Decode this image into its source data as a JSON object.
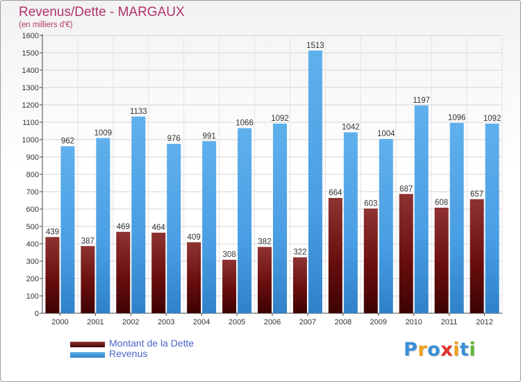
{
  "title": "Revenus/Dette - MARGAUX",
  "subtitle": "(en milliers d'€)",
  "legend": [
    {
      "label": "Montant de la Dette",
      "color": "#6e0b0b"
    },
    {
      "label": "Revenus",
      "color": "#4a9ee3"
    }
  ],
  "logo": {
    "text": "Proxiti",
    "letters": [
      {
        "ch": "P",
        "color": "#3a8fd8"
      },
      {
        "ch": "r",
        "color": "#f0a01c"
      },
      {
        "ch": "o",
        "color": "#3a8fd8"
      },
      {
        "ch": "x",
        "color": "#e0312b"
      },
      {
        "ch": "i",
        "color": "#f0a01c"
      },
      {
        "ch": "t",
        "color": "#3a8fd8"
      },
      {
        "ch": "i",
        "color": "#5fb636"
      }
    ]
  },
  "chart_data": {
    "type": "bar",
    "title": "Revenus/Dette - MARGAUX",
    "subtitle": "(en milliers d'€)",
    "categories": [
      "2000",
      "2001",
      "2002",
      "2003",
      "2004",
      "2005",
      "2006",
      "2007",
      "2008",
      "2009",
      "2010",
      "2011",
      "2012"
    ],
    "series": [
      {
        "name": "Montant de la Dette",
        "color": "#6e0b0b",
        "values": [
          439,
          387,
          469,
          464,
          409,
          308,
          382,
          322,
          664,
          603,
          687,
          608,
          657
        ]
      },
      {
        "name": "Revenus",
        "color": "#4a9ee3",
        "values": [
          962,
          1009,
          1133,
          976,
          991,
          1066,
          1092,
          1513,
          1042,
          1004,
          1197,
          1096,
          1092
        ]
      }
    ],
    "ylim": [
      0,
      1600
    ],
    "yticks": [
      0,
      100,
      200,
      300,
      400,
      500,
      600,
      700,
      800,
      900,
      1000,
      1100,
      1200,
      1300,
      1400,
      1500,
      1600
    ],
    "grid": true,
    "legend_position": "bottom-left"
  }
}
